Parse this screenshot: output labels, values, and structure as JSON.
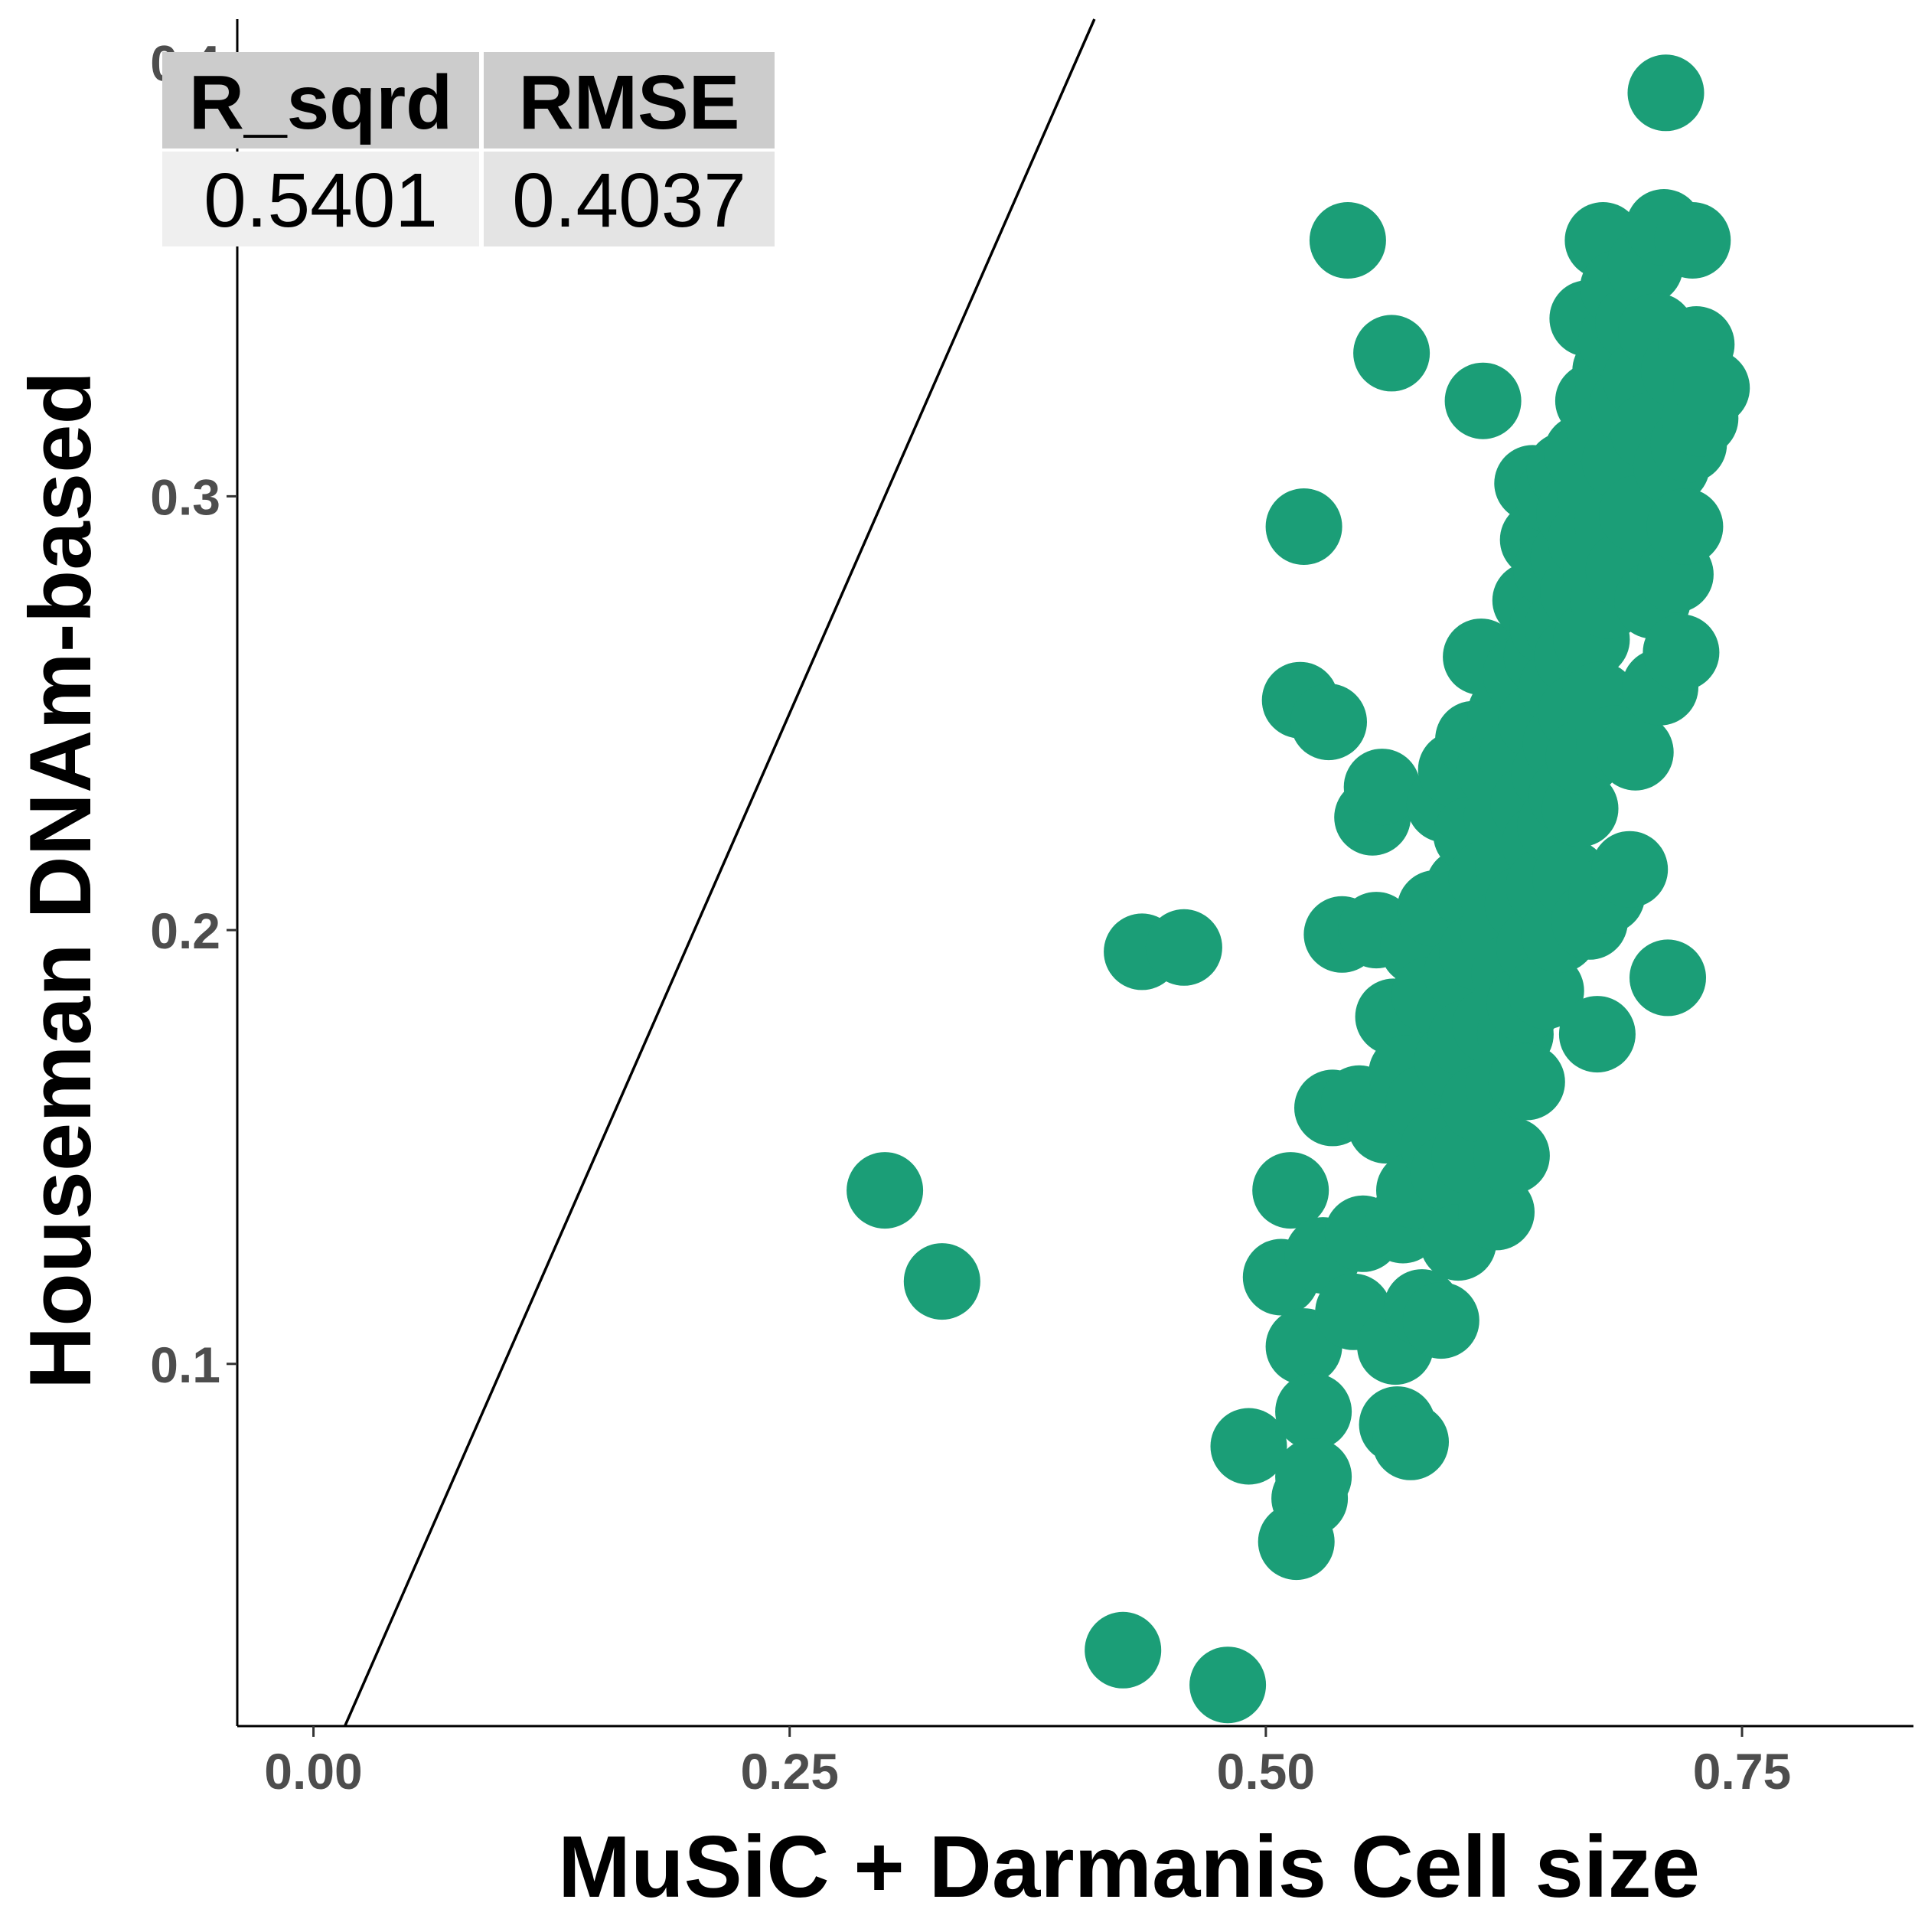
{
  "chart_data": {
    "type": "scatter",
    "xlabel": "MuSiC + Darmanis Cell size",
    "ylabel": "Houseman DNAm-based",
    "xlim": [
      -0.04,
      0.84
    ],
    "ylim": [
      0.0165,
      0.41
    ],
    "x_ticks": [
      {
        "value": 0.0,
        "label": "0.00"
      },
      {
        "value": 0.25,
        "label": "0.25"
      },
      {
        "value": 0.5,
        "label": "0.50"
      },
      {
        "value": 0.75,
        "label": "0.75"
      }
    ],
    "y_ticks": [
      {
        "value": 0.1,
        "label": "0.1"
      },
      {
        "value": 0.2,
        "label": "0.2"
      },
      {
        "value": 0.3,
        "label": "0.3"
      },
      {
        "value": 0.4,
        "label": "0.4"
      }
    ],
    "identity_line": {
      "slope": 1,
      "intercept": 0
    },
    "grid": false,
    "point_color": "#1b9e77",
    "stats_table": {
      "headers": [
        "R_sqrd",
        "RMSE"
      ],
      "values": [
        "0.5401",
        "0.4037"
      ]
    },
    "series": [
      {
        "points": [
          [
            0.3,
            0.14
          ],
          [
            0.33,
            0.119
          ],
          [
            0.425,
            0.034
          ],
          [
            0.435,
            0.195
          ],
          [
            0.457,
            0.196
          ],
          [
            0.48,
            0.026
          ],
          [
            0.491,
            0.081
          ],
          [
            0.508,
            0.12
          ],
          [
            0.513,
            0.14
          ],
          [
            0.516,
            0.059
          ],
          [
            0.518,
            0.253
          ],
          [
            0.52,
            0.293
          ],
          [
            0.52,
            0.104
          ],
          [
            0.523,
            0.069
          ],
          [
            0.525,
            0.089
          ],
          [
            0.525,
            0.074
          ],
          [
            0.53,
            0.125
          ],
          [
            0.533,
            0.248
          ],
          [
            0.535,
            0.159
          ],
          [
            0.54,
            0.199
          ],
          [
            0.543,
            0.359
          ],
          [
            0.546,
            0.112
          ],
          [
            0.549,
            0.16
          ],
          [
            0.551,
            0.13
          ],
          [
            0.556,
            0.226
          ],
          [
            0.558,
            0.2
          ],
          [
            0.561,
            0.233
          ],
          [
            0.563,
            0.155
          ],
          [
            0.566,
            0.333
          ],
          [
            0.567,
            0.18
          ],
          [
            0.568,
            0.104
          ],
          [
            0.569,
            0.086
          ],
          [
            0.572,
            0.132
          ],
          [
            0.574,
            0.167
          ],
          [
            0.576,
            0.082
          ],
          [
            0.578,
            0.14
          ],
          [
            0.58,
            0.196
          ],
          [
            0.582,
            0.113
          ],
          [
            0.583,
            0.16
          ],
          [
            0.586,
            0.185
          ],
          [
            0.589,
            0.205
          ],
          [
            0.591,
            0.15
          ],
          [
            0.592,
            0.11
          ],
          [
            0.594,
            0.229
          ],
          [
            0.596,
            0.144
          ],
          [
            0.598,
            0.17
          ],
          [
            0.6,
            0.237
          ],
          [
            0.601,
            0.128
          ],
          [
            0.603,
            0.19
          ],
          [
            0.604,
            0.21
          ],
          [
            0.605,
            0.175
          ],
          [
            0.607,
            0.148
          ],
          [
            0.608,
            0.222
          ],
          [
            0.609,
            0.244
          ],
          [
            0.611,
            0.195
          ],
          [
            0.612,
            0.16
          ],
          [
            0.613,
            0.263
          ],
          [
            0.614,
            0.322
          ],
          [
            0.616,
            0.212
          ],
          [
            0.618,
            0.178
          ],
          [
            0.62,
            0.237
          ],
          [
            0.621,
            0.135
          ],
          [
            0.622,
            0.2
          ],
          [
            0.624,
            0.226
          ],
          [
            0.625,
            0.164
          ],
          [
            0.626,
            0.25
          ],
          [
            0.628,
            0.19
          ],
          [
            0.629,
            0.148
          ],
          [
            0.63,
            0.215
          ],
          [
            0.631,
            0.176
          ],
          [
            0.632,
            0.24
          ],
          [
            0.634,
            0.259
          ],
          [
            0.635,
            0.206
          ],
          [
            0.636,
            0.183
          ],
          [
            0.637,
            0.165
          ],
          [
            0.638,
            0.229
          ],
          [
            0.639,
            0.276
          ],
          [
            0.64,
            0.303
          ],
          [
            0.641,
            0.196
          ],
          [
            0.642,
            0.248
          ],
          [
            0.643,
            0.29
          ],
          [
            0.644,
            0.22
          ],
          [
            0.645,
            0.263
          ],
          [
            0.646,
            0.21
          ],
          [
            0.647,
            0.186
          ],
          [
            0.648,
            0.27
          ],
          [
            0.649,
            0.236
          ],
          [
            0.65,
            0.283
          ],
          [
            0.651,
            0.3
          ],
          [
            0.652,
            0.224
          ],
          [
            0.653,
            0.256
          ],
          [
            0.654,
            0.199
          ],
          [
            0.655,
            0.243
          ],
          [
            0.656,
            0.27
          ],
          [
            0.657,
            0.306
          ],
          [
            0.658,
            0.231
          ],
          [
            0.659,
            0.286
          ],
          [
            0.66,
            0.212
          ],
          [
            0.661,
            0.263
          ],
          [
            0.662,
            0.296
          ],
          [
            0.663,
            0.25
          ],
          [
            0.664,
            0.278
          ],
          [
            0.665,
            0.228
          ],
          [
            0.666,
            0.31
          ],
          [
            0.667,
            0.24
          ],
          [
            0.668,
            0.29
          ],
          [
            0.669,
            0.341
          ],
          [
            0.67,
            0.202
          ],
          [
            0.671,
            0.267
          ],
          [
            0.672,
            0.322
          ],
          [
            0.673,
            0.3
          ],
          [
            0.674,
            0.176
          ],
          [
            0.675,
            0.253
          ],
          [
            0.676,
            0.283
          ],
          [
            0.677,
            0.359
          ],
          [
            0.678,
            0.315
          ],
          [
            0.679,
            0.208
          ],
          [
            0.68,
            0.276
          ],
          [
            0.681,
            0.329
          ],
          [
            0.682,
            0.294
          ],
          [
            0.683,
            0.243
          ],
          [
            0.684,
            0.336
          ],
          [
            0.685,
            0.348
          ],
          [
            0.686,
            0.308
          ],
          [
            0.688,
            0.283
          ],
          [
            0.69,
            0.321
          ],
          [
            0.691,
            0.214
          ],
          [
            0.693,
            0.34
          ],
          [
            0.694,
            0.241
          ],
          [
            0.695,
            0.296
          ],
          [
            0.697,
            0.327
          ],
          [
            0.699,
            0.353
          ],
          [
            0.701,
            0.315
          ],
          [
            0.703,
            0.276
          ],
          [
            0.705,
            0.338
          ],
          [
            0.707,
            0.256
          ],
          [
            0.709,
            0.362
          ],
          [
            0.71,
            0.393
          ],
          [
            0.711,
            0.189
          ],
          [
            0.713,
            0.307
          ],
          [
            0.715,
            0.282
          ],
          [
            0.717,
            0.329
          ],
          [
            0.718,
            0.264
          ],
          [
            0.72,
            0.293
          ],
          [
            0.722,
            0.312
          ],
          [
            0.724,
            0.359
          ],
          [
            0.726,
            0.335
          ],
          [
            0.728,
            0.318
          ],
          [
            0.734,
            0.325
          ]
        ]
      }
    ]
  }
}
